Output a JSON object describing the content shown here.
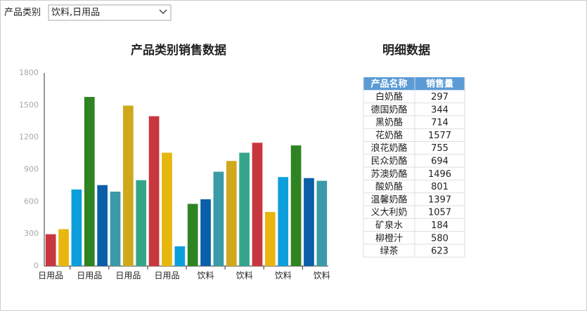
{
  "filter": {
    "label": "产品类别",
    "value": "饮料,日用品"
  },
  "chart_data": {
    "type": "bar",
    "title": "产品类别销售数据",
    "categories": [
      "日用品",
      null,
      null,
      "日用品",
      null,
      null,
      "日用品",
      null,
      null,
      "日用品",
      null,
      null,
      "饮料",
      null,
      null,
      "饮料",
      null,
      null,
      "饮料",
      null,
      null,
      "饮料"
    ],
    "values": [
      297,
      344,
      714,
      1577,
      755,
      694,
      1496,
      801,
      1397,
      1057,
      184,
      580,
      623,
      880,
      980,
      1057,
      1150,
      505,
      830,
      1125,
      820,
      795
    ],
    "colors": [
      "#c8363e",
      "#e8b70e",
      "#0c9fdc",
      "#2e8422",
      "#0a5fa8",
      "#3a9aa8",
      "#cfa81c",
      "#35a58a"
    ],
    "ylim": [
      0,
      1800
    ],
    "yticks": [
      0,
      300,
      600,
      900,
      1200,
      1500,
      1800
    ],
    "grid": false
  },
  "table": {
    "title": "明细数据",
    "headers": [
      "产品名称",
      "销售量"
    ],
    "rows": [
      [
        "白奶酪",
        "297"
      ],
      [
        "德国奶酪",
        "344"
      ],
      [
        "黑奶酪",
        "714"
      ],
      [
        "花奶酪",
        "1577"
      ],
      [
        "浪花奶酪",
        "755"
      ],
      [
        "民众奶酪",
        "694"
      ],
      [
        "苏澳奶酪",
        "1496"
      ],
      [
        "酸奶酪",
        "801"
      ],
      [
        "温馨奶酪",
        "1397"
      ],
      [
        "义大利奶",
        "1057"
      ],
      [
        "矿泉水",
        "184"
      ],
      [
        "柳橙汁",
        "580"
      ],
      [
        "绿茶",
        "623"
      ]
    ]
  }
}
